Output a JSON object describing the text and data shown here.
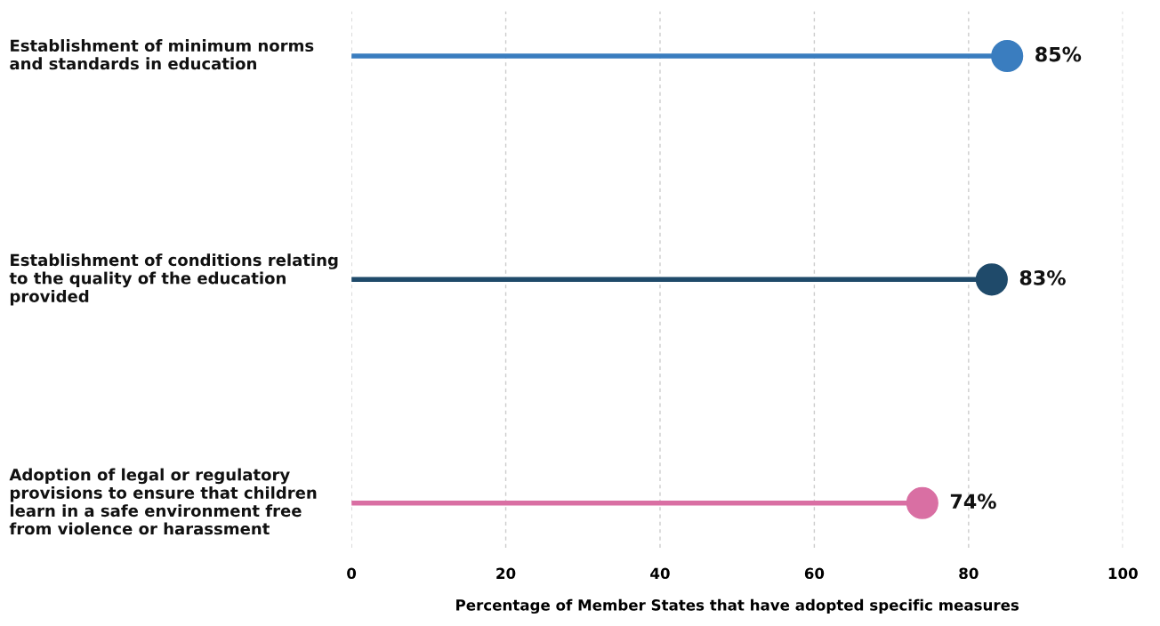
{
  "chart_data": {
    "type": "lollipop",
    "orientation": "horizontal",
    "xlabel": "Percentage of Member States that have adopted specific measures",
    "categories": [
      "Establishment of minimum norms\nand standards in education",
      "Establishment of conditions relating\nto the quality of the education\nprovided",
      "Adoption of legal or regulatory\nprovisions to ensure that children\nlearn in a safe environment free\nfrom violence or harassment"
    ],
    "values": [
      85,
      83,
      74
    ],
    "colors": [
      "#3a7dbf",
      "#1f4a6a",
      "#d96fa3"
    ],
    "value_labels": [
      "85%",
      "83%",
      "74%"
    ],
    "xlim": [
      0,
      100
    ],
    "xticks": [
      0,
      20,
      40,
      60,
      80,
      100
    ],
    "grid": "x",
    "marker": "circle"
  }
}
